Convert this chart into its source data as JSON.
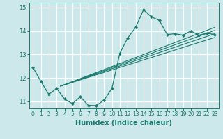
{
  "title": "",
  "xlabel": "Humidex (Indice chaleur)",
  "background_color": "#cde8eb",
  "grid_color": "#ffffff",
  "line_color": "#1a7a6e",
  "xlim": [
    -0.5,
    23.5
  ],
  "ylim": [
    10.7,
    15.2
  ],
  "yticks": [
    11,
    12,
    13,
    14,
    15
  ],
  "xticks": [
    0,
    1,
    2,
    3,
    4,
    5,
    6,
    7,
    8,
    9,
    10,
    11,
    12,
    13,
    14,
    15,
    16,
    17,
    18,
    19,
    20,
    21,
    22,
    23
  ],
  "main_line_x": [
    0,
    1,
    2,
    3,
    4,
    5,
    6,
    7,
    8,
    9,
    10,
    11,
    12,
    13,
    14,
    15,
    16,
    17,
    18,
    19,
    20,
    21,
    22,
    23
  ],
  "main_line_y": [
    12.45,
    11.85,
    11.3,
    11.55,
    11.1,
    10.9,
    11.2,
    10.83,
    10.82,
    11.05,
    11.55,
    13.05,
    13.7,
    14.15,
    14.9,
    14.6,
    14.45,
    13.85,
    13.88,
    13.82,
    14.0,
    13.82,
    13.9,
    13.85
  ],
  "trend_lines": [
    {
      "x": [
        3.5,
        23
      ],
      "y": [
        11.65,
        13.72
      ]
    },
    {
      "x": [
        3.5,
        23
      ],
      "y": [
        11.65,
        13.88
      ]
    },
    {
      "x": [
        3.5,
        23
      ],
      "y": [
        11.65,
        14.02
      ]
    },
    {
      "x": [
        3.5,
        23
      ],
      "y": [
        11.65,
        14.15
      ]
    }
  ],
  "xlabel_fontsize": 7,
  "tick_fontsize": 5.5
}
